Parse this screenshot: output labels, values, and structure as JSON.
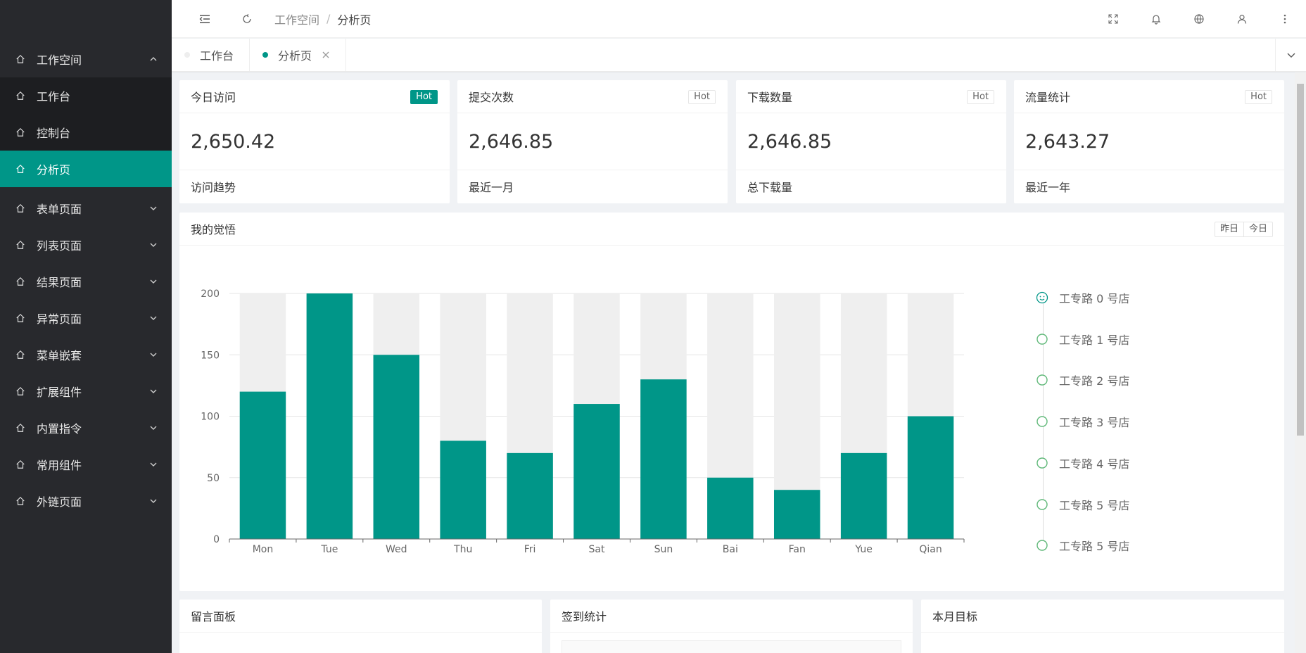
{
  "sidebar": {
    "items": [
      {
        "label": "工作空间",
        "icon": "home-icon"
      },
      {
        "label": "工作台",
        "icon": "home-icon"
      },
      {
        "label": "控制台",
        "icon": "home-icon"
      },
      {
        "label": "分析页",
        "icon": "home-icon"
      },
      {
        "label": "表单页面",
        "icon": "home-icon"
      },
      {
        "label": "列表页面",
        "icon": "home-icon"
      },
      {
        "label": "结果页面",
        "icon": "home-icon"
      },
      {
        "label": "异常页面",
        "icon": "home-icon"
      },
      {
        "label": "菜单嵌套",
        "icon": "home-icon"
      },
      {
        "label": "扩展组件",
        "icon": "home-icon"
      },
      {
        "label": "内置指令",
        "icon": "home-icon"
      },
      {
        "label": "常用组件",
        "icon": "home-icon"
      },
      {
        "label": "外链页面",
        "icon": "home-icon"
      }
    ]
  },
  "header": {
    "breadcrumb": [
      "工作空间",
      "/",
      "分析页"
    ]
  },
  "tabs": [
    {
      "label": "工作台"
    },
    {
      "label": "分析页"
    }
  ],
  "stats": [
    {
      "title": "今日访问",
      "badge": "Hot",
      "value": "2,650.42",
      "footer": "访问趋势"
    },
    {
      "title": "提交次数",
      "badge": "Hot",
      "value": "2,646.85",
      "footer": "最近一月"
    },
    {
      "title": "下载数量",
      "badge": "Hot",
      "value": "2,646.85",
      "footer": "总下载量"
    },
    {
      "title": "流量统计",
      "badge": "Hot",
      "value": "2,643.27",
      "footer": "最近一年"
    }
  ],
  "insight": {
    "title": "我的觉悟",
    "toggle": [
      "昨日",
      "今日"
    ]
  },
  "timeline": [
    "工专路 0 号店",
    "工专路 1 号店",
    "工专路 2 号店",
    "工专路 3 号店",
    "工专路 4 号店",
    "工专路 5 号店",
    "工专路 5 号店"
  ],
  "bottom": {
    "panels": [
      "留言面板",
      "签到统计",
      "本月目标"
    ]
  },
  "colors": {
    "accent": "#009688",
    "sidebar": "#28292d",
    "sidebar_sub": "#1d1e21",
    "bar_bg": "#efefef"
  },
  "chart_data": {
    "type": "bar",
    "categories": [
      "Mon",
      "Tue",
      "Wed",
      "Thu",
      "Fri",
      "Sat",
      "Sun",
      "Bai",
      "Fan",
      "Yue",
      "Qian"
    ],
    "values": [
      120,
      200,
      150,
      80,
      70,
      110,
      130,
      50,
      40,
      70,
      100
    ],
    "background_max": 200,
    "ylim": [
      0,
      200
    ],
    "yticks": [
      0,
      50,
      100,
      150,
      200
    ],
    "grid": true
  }
}
